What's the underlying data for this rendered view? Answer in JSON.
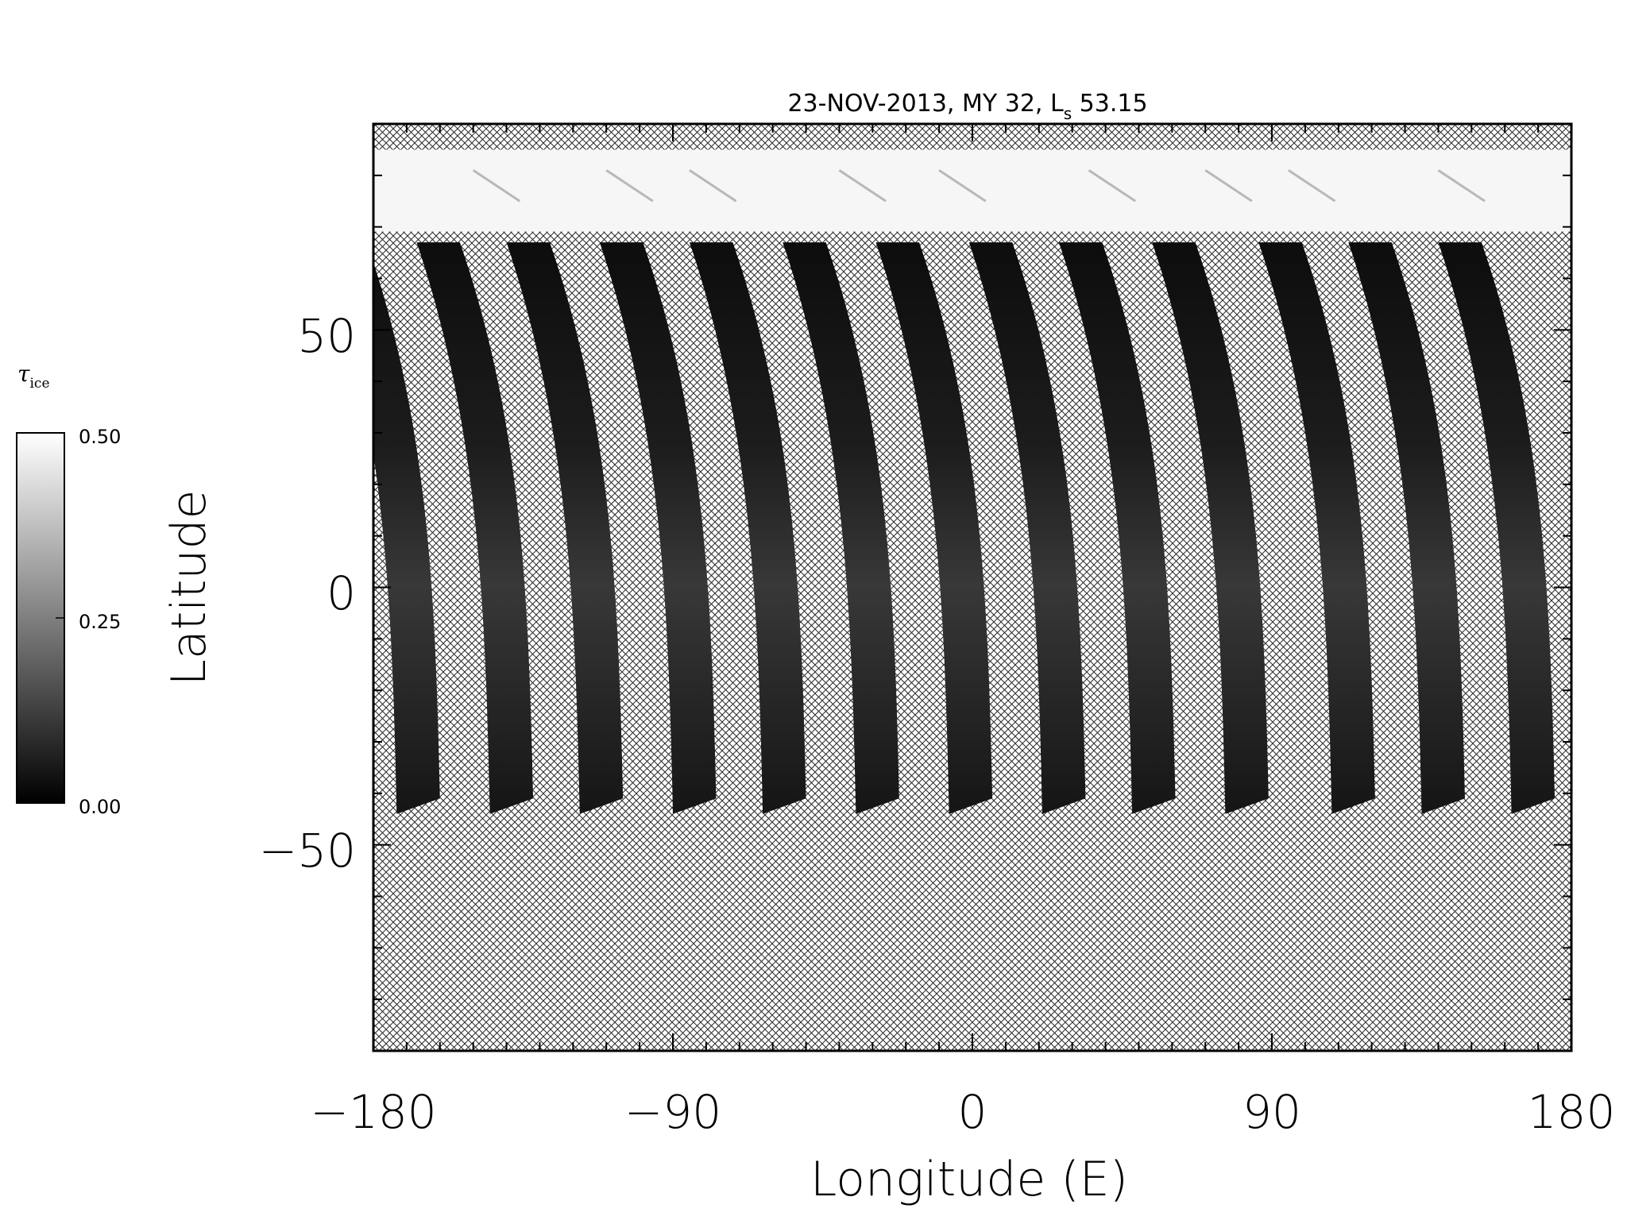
{
  "chart_data": {
    "type": "heatmap",
    "title": "23-NOV-2013, MY 32,  L",
    "title_sub": "s",
    "title_tail": " 53.15",
    "xlabel": "Longitude (E)",
    "ylabel": "Latitude",
    "xlim": [
      -180,
      180
    ],
    "ylim": [
      -90,
      90
    ],
    "x_ticks": [
      -180,
      -90,
      0,
      90,
      180
    ],
    "x_tick_labels": [
      "−180",
      "−90",
      "0",
      "90",
      "180"
    ],
    "y_ticks": [
      -50,
      0,
      50
    ],
    "y_tick_labels": [
      "−50",
      "0",
      "50"
    ],
    "no_data_fill": "crosshatch",
    "polar_cap_lat_range": [
      70,
      85
    ],
    "swath_lat_range": [
      -44,
      67
    ],
    "swath_south_start_lon": [
      -173,
      -145,
      -118,
      -90,
      -63,
      -35,
      -7,
      21,
      48,
      76,
      108,
      135,
      162
    ],
    "swath_width_deg": 13,
    "colorbar": {
      "title": "τ",
      "title_sub": "ice",
      "min": 0.0,
      "max": 0.5,
      "ticks": [
        0.0,
        0.25,
        0.5
      ],
      "tick_labels": [
        "0.00",
        "0.25",
        "0.50"
      ],
      "colormap": "grayscale",
      "low_color": "#000000",
      "high_color": "#ffffff"
    }
  }
}
